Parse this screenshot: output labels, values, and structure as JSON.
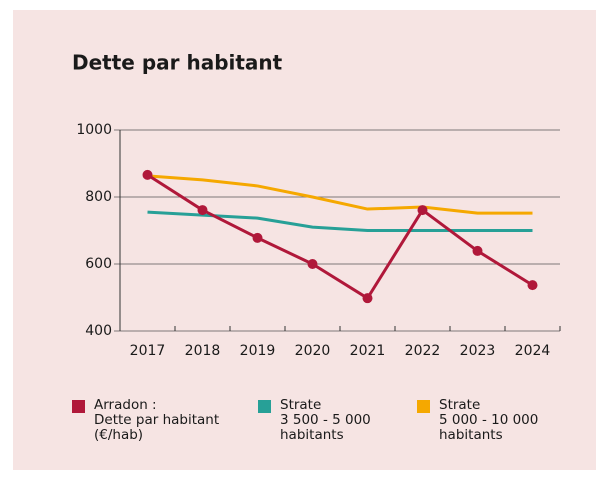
{
  "chart_data": {
    "type": "line",
    "title": "Dette par habitant",
    "categories": [
      "2017",
      "2018",
      "2019",
      "2020",
      "2021",
      "2022",
      "2023",
      "2024"
    ],
    "series": [
      {
        "name": "Arradon :\nDette par habitant\n(€/hab)",
        "color": "#b0183a",
        "values": [
          866,
          761,
          678,
          600,
          498,
          761,
          639,
          537
        ],
        "markers": true
      },
      {
        "name": "Strate\n3 500 - 5 000\nhabitants",
        "color": "#27a097",
        "values": [
          755,
          746,
          737,
          710,
          700,
          700,
          700,
          700
        ]
      },
      {
        "name": "Strate\n5 000 - 10 000\nhabitants",
        "color": "#f5a800",
        "values": [
          863,
          851,
          833,
          800,
          764,
          770,
          752,
          752
        ]
      }
    ],
    "ylim": [
      400,
      1000
    ],
    "yticks": [
      400,
      600,
      800,
      1000
    ],
    "grid": true
  }
}
